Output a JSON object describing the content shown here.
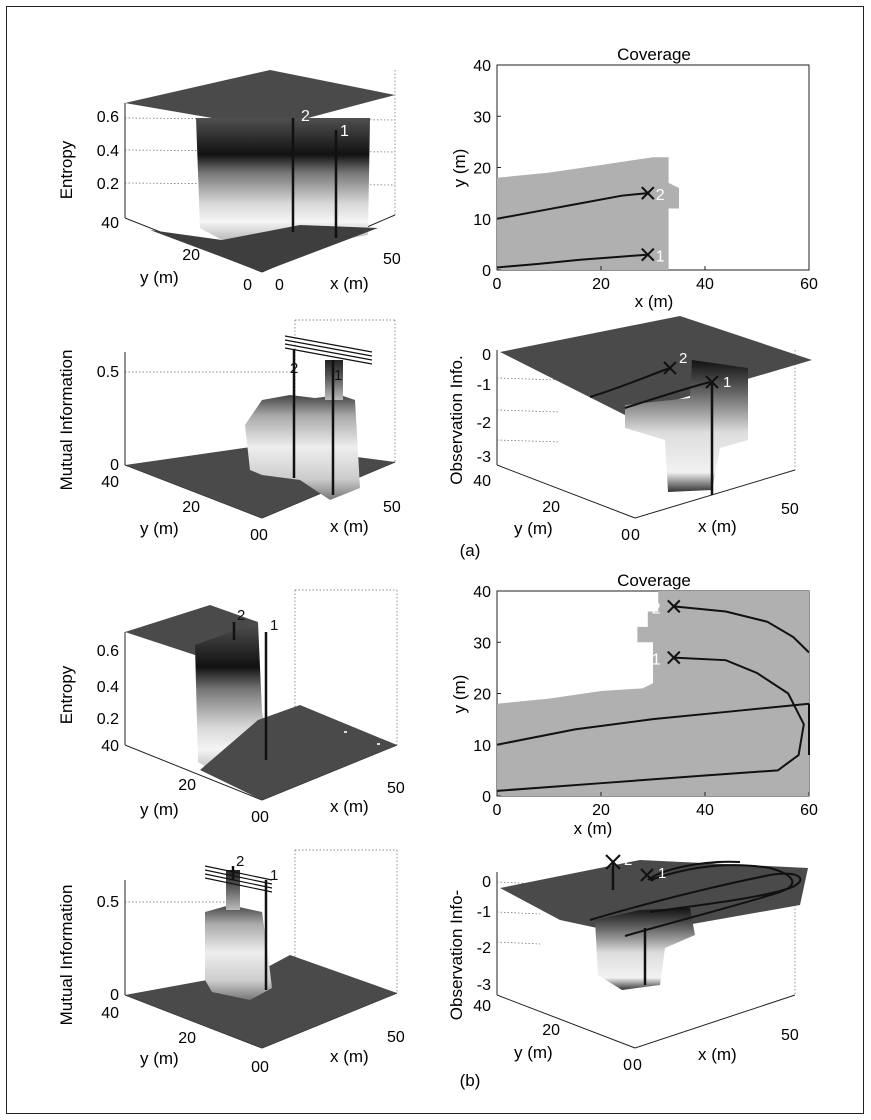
{
  "captions": {
    "a": "(a)",
    "b": "(b)"
  },
  "colors": {
    "surface_dark": "#4a4a4a",
    "coverage_gray": "#b0b0b0",
    "trajectory": "#111111",
    "box_border": "#222222"
  },
  "chart_data": [
    {
      "id": "a-entropy",
      "type": "surface3d",
      "panel": "(a)",
      "zlabel": "Entropy",
      "xlabel": "x (m)",
      "ylabel": "y (m)",
      "z_ticks": [
        "0.2",
        "0.4",
        "0.6"
      ],
      "y_ticks": [
        "40",
        "20",
        "0"
      ],
      "x_ticks": [
        "0",
        "50"
      ],
      "robot_labels": [
        "2",
        "1"
      ]
    },
    {
      "id": "a-coverage",
      "type": "coverage_map",
      "panel": "(a)",
      "title": "Coverage",
      "xlabel": "x (m)",
      "ylabel": "y (m)",
      "xlim": [
        0,
        60
      ],
      "ylim": [
        0,
        40
      ],
      "x_ticks": [
        "0",
        "20",
        "40",
        "60"
      ],
      "y_ticks": [
        "0",
        "10",
        "20",
        "30",
        "40"
      ],
      "covered_region": [
        [
          0,
          0
        ],
        [
          0,
          18
        ],
        [
          10,
          19
        ],
        [
          20,
          20.5
        ],
        [
          30,
          22
        ],
        [
          33,
          22
        ],
        [
          33,
          17
        ],
        [
          35,
          16
        ],
        [
          35,
          12
        ],
        [
          33,
          12
        ],
        [
          33,
          0
        ]
      ],
      "series": [
        {
          "values": [
            [
              0,
              10
            ],
            [
              8,
              11.5
            ],
            [
              16,
              13
            ],
            [
              24,
              14.5
            ],
            [
              29,
              15
            ]
          ],
          "end_label": "2"
        },
        {
          "values": [
            [
              0,
              0.5
            ],
            [
              8,
              1.2
            ],
            [
              16,
              2
            ],
            [
              24,
              2.6
            ],
            [
              29,
              3
            ]
          ],
          "end_label": "1"
        }
      ]
    },
    {
      "id": "a-mutual-information",
      "type": "surface3d",
      "panel": "(a)",
      "zlabel": "Mutual Information",
      "xlabel": "x (m)",
      "ylabel": "y (m)",
      "z_ticks": [
        "0",
        "0.5"
      ],
      "y_ticks": [
        "40",
        "20",
        "0"
      ],
      "x_ticks": [
        "0",
        "50"
      ],
      "robot_labels": [
        "2",
        "1"
      ]
    },
    {
      "id": "a-observation-info",
      "type": "surface3d",
      "panel": "(a)",
      "zlabel": "Observation Info.",
      "xlabel": "x (m)",
      "ylabel": "y (m)",
      "z_ticks": [
        "0",
        "-1",
        "-2",
        "-3"
      ],
      "y_ticks": [
        "40",
        "20",
        "0"
      ],
      "x_ticks": [
        "0",
        "50"
      ],
      "robot_labels": [
        "2",
        "1"
      ]
    },
    {
      "id": "b-entropy",
      "type": "surface3d",
      "panel": "(b)",
      "zlabel": "Entropy",
      "xlabel": "x (m)",
      "ylabel": "y (m)",
      "z_ticks": [
        "0.2",
        "0.4",
        "0.6"
      ],
      "y_ticks": [
        "40",
        "20",
        "0"
      ],
      "x_ticks": [
        "0",
        "50"
      ],
      "robot_labels": [
        "2",
        "1"
      ]
    },
    {
      "id": "b-coverage",
      "type": "coverage_map",
      "panel": "(b)",
      "title": "Coverage",
      "xlabel": "x (m)",
      "ylabel": "y (m)",
      "xlim": [
        0,
        60
      ],
      "ylim": [
        0,
        40
      ],
      "x_ticks": [
        "0",
        "20",
        "40",
        "60"
      ],
      "y_ticks": [
        "0",
        "10",
        "20",
        "30",
        "40"
      ],
      "covered_region": [
        [
          0,
          0
        ],
        [
          0,
          18
        ],
        [
          10,
          19
        ],
        [
          20,
          20.5
        ],
        [
          28,
          21
        ],
        [
          30,
          22
        ],
        [
          30,
          30
        ],
        [
          27,
          30
        ],
        [
          27,
          33
        ],
        [
          29,
          33
        ],
        [
          29,
          36
        ],
        [
          31,
          36
        ],
        [
          31,
          40
        ],
        [
          60,
          40
        ],
        [
          60,
          0
        ]
      ],
      "series": [
        {
          "values": [
            [
              34,
              37
            ],
            [
              44,
              36
            ],
            [
              52,
              34
            ],
            [
              57,
              31
            ],
            [
              60,
              28
            ]
          ],
          "end_label": "2"
        },
        {
          "values": [
            [
              34,
              27
            ],
            [
              44,
              26.5
            ],
            [
              50,
              24
            ],
            [
              56,
              20
            ],
            [
              59,
              14
            ],
            [
              58,
              8
            ],
            [
              54,
              5
            ],
            [
              40,
              4
            ],
            [
              20,
              2.5
            ],
            [
              0,
              1
            ]
          ],
          "end_label": "1"
        },
        {
          "values": [
            [
              0,
              10
            ],
            [
              15,
              13
            ],
            [
              30,
              15
            ],
            [
              45,
              16.5
            ],
            [
              60,
              18
            ]
          ]
        },
        {
          "values": [
            [
              60,
              18
            ],
            [
              60,
              8
            ]
          ]
        }
      ]
    },
    {
      "id": "b-mutual-information",
      "type": "surface3d",
      "panel": "(b)",
      "zlabel": "Mutual Information",
      "xlabel": "x (m)",
      "ylabel": "y (m)",
      "z_ticks": [
        "0",
        "0.5"
      ],
      "y_ticks": [
        "40",
        "20",
        "0"
      ],
      "x_ticks": [
        "0",
        "50"
      ],
      "robot_labels": [
        "2",
        "1"
      ]
    },
    {
      "id": "b-observation-info",
      "type": "surface3d",
      "panel": "(b)",
      "zlabel": "Observation Info-",
      "xlabel": "x (m)",
      "ylabel": "y (m)",
      "z_ticks": [
        "0",
        "-1",
        "-2",
        "-3"
      ],
      "y_ticks": [
        "40",
        "20",
        "0"
      ],
      "x_ticks": [
        "0",
        "50"
      ],
      "robot_labels": [
        "2",
        "1"
      ]
    }
  ]
}
